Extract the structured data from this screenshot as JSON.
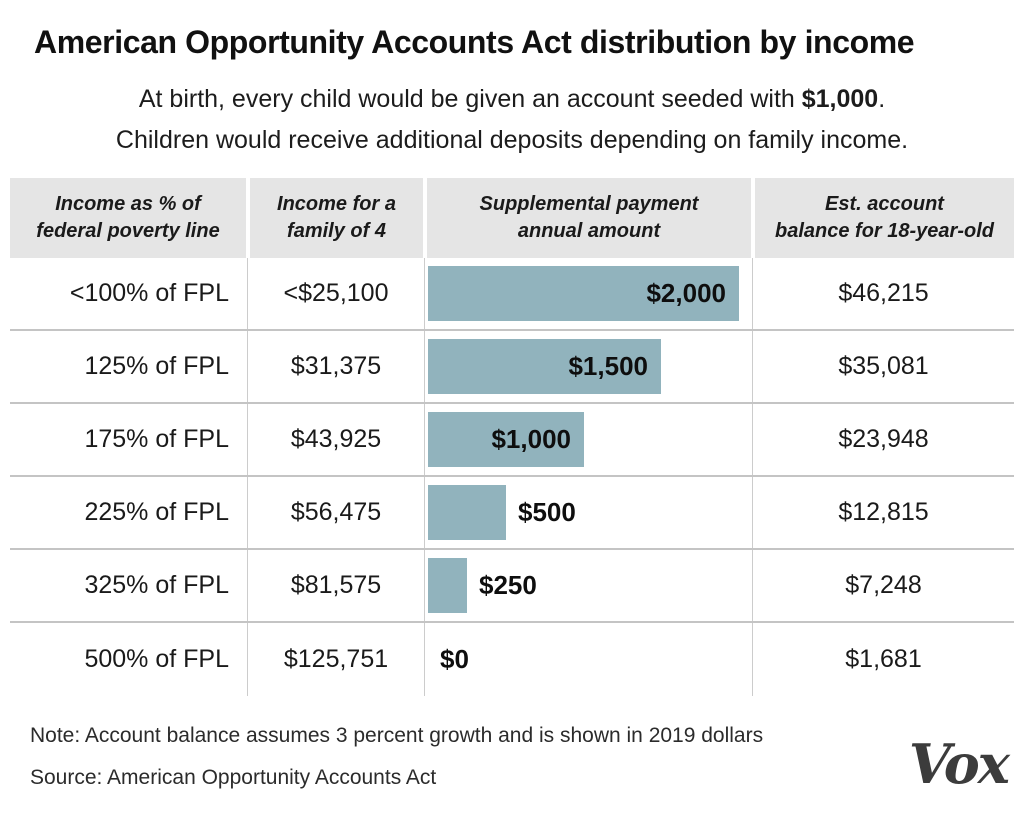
{
  "title": "American Opportunity Accounts Act distribution by income",
  "subtitle": {
    "line1_before": "At birth, every child would be given an account seeded with ",
    "line1_bold": "$1,000",
    "line1_after": ".",
    "line2": "Children would receive additional deposits depending on family income."
  },
  "table": {
    "headers": [
      {
        "line1": "Income as % of",
        "line2": "federal poverty line"
      },
      {
        "line1": "Income for a",
        "line2": "family of 4"
      },
      {
        "line1": "Supplemental payment",
        "line2": "annual amount"
      },
      {
        "line1": "Est. account",
        "line2": "balance for 18-year-old"
      }
    ],
    "rows": [
      {
        "fpl": "<100% of FPL",
        "income": "<$25,100",
        "payment": "$2,000",
        "payment_value": 2000,
        "balance": "$46,215"
      },
      {
        "fpl": "125% of FPL",
        "income": "$31,375",
        "payment": "$1,500",
        "payment_value": 1500,
        "balance": "$35,081"
      },
      {
        "fpl": "175% of FPL",
        "income": "$43,925",
        "payment": "$1,000",
        "payment_value": 1000,
        "balance": "$23,948"
      },
      {
        "fpl": "225% of FPL",
        "income": "$56,475",
        "payment": "$500",
        "payment_value": 500,
        "balance": "$12,815"
      },
      {
        "fpl": "325% of FPL",
        "income": "$81,575",
        "payment": "$250",
        "payment_value": 250,
        "balance": "$7,248"
      },
      {
        "fpl": "500% of FPL",
        "income": "$125,751",
        "payment": "$0",
        "payment_value": 0,
        "balance": "$1,681"
      }
    ]
  },
  "note": "Note: Account balance assumes 3 percent growth and is shown in 2019 dollars",
  "source": "Source: American Opportunity Accounts Act",
  "logo_text": "Vox",
  "colors": {
    "bar": "#91b3bd",
    "header_bg": "#e5e5e5",
    "row_divider": "#c4c4c4",
    "column_divider": "#cccccc",
    "text": "#1a1a1a"
  },
  "chart_data": {
    "type": "bar",
    "orientation": "horizontal",
    "title": "American Opportunity Accounts Act distribution by income",
    "subtitle": "At birth, every child would be given an account seeded with $1,000. Children would receive additional deposits depending on family income.",
    "categories": [
      "<100% of FPL",
      "125% of FPL",
      "175% of FPL",
      "225% of FPL",
      "325% of FPL",
      "500% of FPL"
    ],
    "series_label": "Supplemental payment annual amount",
    "values": [
      2000,
      1500,
      1000,
      500,
      250,
      0
    ],
    "value_labels": [
      "$2,000",
      "$1,500",
      "$1,000",
      "$500",
      "$250",
      "$0"
    ],
    "bar_axis_max": 2100,
    "grid": false,
    "legend": false,
    "companion_columns": [
      {
        "label": "Income for a family of 4",
        "values": [
          "<$25,100",
          "$31,375",
          "$43,925",
          "$56,475",
          "$81,575",
          "$125,751"
        ]
      },
      {
        "label": "Est. account balance for 18-year-old",
        "values": [
          46215,
          35081,
          23948,
          12815,
          7248,
          1681
        ]
      }
    ],
    "note": "Account balance assumes 3 percent growth and is shown in 2019 dollars",
    "source": "American Opportunity Accounts Act"
  }
}
